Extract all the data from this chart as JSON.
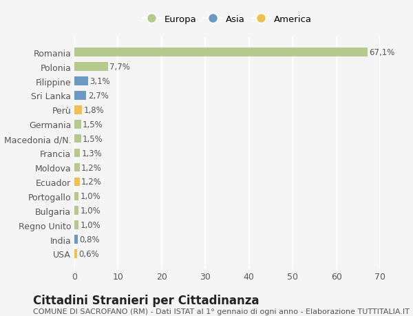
{
  "categories": [
    "Romania",
    "Polonia",
    "Filippine",
    "Sri Lanka",
    "Perù",
    "Germania",
    "Macedonia d/N.",
    "Francia",
    "Moldova",
    "Ecuador",
    "Portogallo",
    "Bulgaria",
    "Regno Unito",
    "India",
    "USA"
  ],
  "values": [
    67.1,
    7.7,
    3.1,
    2.7,
    1.8,
    1.5,
    1.5,
    1.3,
    1.2,
    1.2,
    1.0,
    1.0,
    1.0,
    0.8,
    0.6
  ],
  "labels": [
    "67,1%",
    "7,7%",
    "3,1%",
    "2,7%",
    "1,8%",
    "1,5%",
    "1,5%",
    "1,3%",
    "1,2%",
    "1,2%",
    "1,0%",
    "1,0%",
    "1,0%",
    "0,8%",
    "0,6%"
  ],
  "colors": [
    "#b5c98e",
    "#b5c98e",
    "#6a9ac4",
    "#6a9ac4",
    "#f0c050",
    "#b5c98e",
    "#b5c98e",
    "#b5c98e",
    "#b5c98e",
    "#f0c050",
    "#b5c98e",
    "#b5c98e",
    "#b5c98e",
    "#6a9ac4",
    "#f0c050"
  ],
  "legend_labels": [
    "Europa",
    "Asia",
    "America"
  ],
  "legend_colors": [
    "#b5c98e",
    "#6a9ac4",
    "#f0c050"
  ],
  "title": "Cittadini Stranieri per Cittadinanza",
  "subtitle": "COMUNE DI SACROFANO (RM) - Dati ISTAT al 1° gennaio di ogni anno - Elaborazione TUTTITALIA.IT",
  "xlim": [
    0,
    70
  ],
  "xticks": [
    0,
    10,
    20,
    30,
    40,
    50,
    60,
    70
  ],
  "background_color": "#f5f5f5",
  "grid_color": "#ffffff",
  "bar_height": 0.6,
  "label_fontsize": 8.5,
  "title_fontsize": 12,
  "subtitle_fontsize": 8,
  "tick_fontsize": 9
}
